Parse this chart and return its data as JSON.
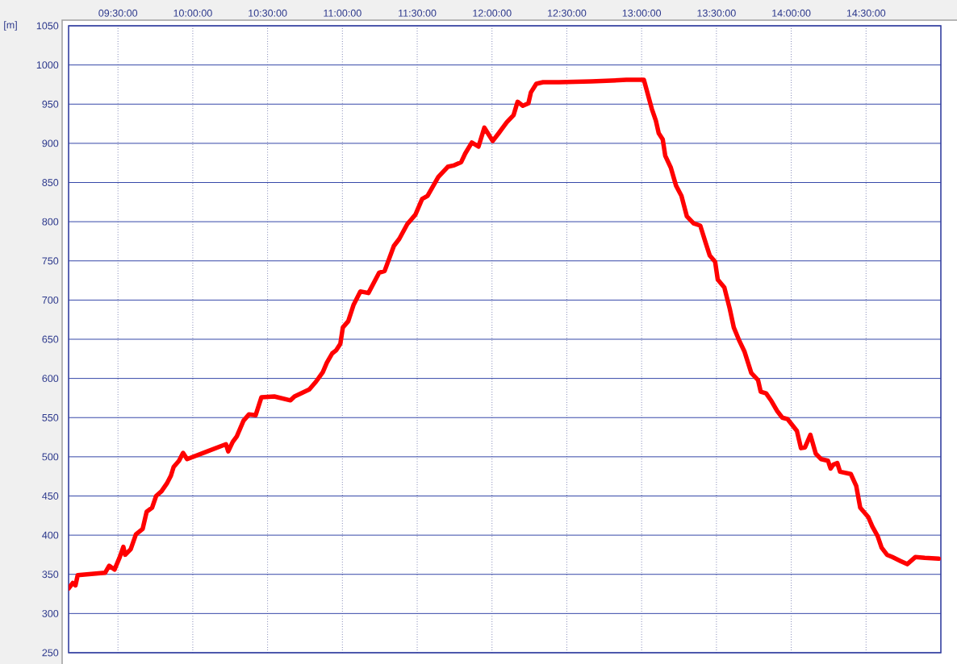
{
  "chart_data": {
    "type": "line",
    "ylabel": "[m]",
    "color": "#ff0000",
    "grid": true,
    "xlim": [
      9.17,
      15
    ],
    "ylim": [
      250,
      1050
    ],
    "xticks": [
      {
        "value": 9.5,
        "label": "09:30:00"
      },
      {
        "value": 10,
        "label": "10:00:00"
      },
      {
        "value": 10.5,
        "label": "10:30:00"
      },
      {
        "value": 11,
        "label": "11:00:00"
      },
      {
        "value": 11.5,
        "label": "11:30:00"
      },
      {
        "value": 12,
        "label": "12:00:00"
      },
      {
        "value": 12.5,
        "label": "12:30:00"
      },
      {
        "value": 13,
        "label": "13:00:00"
      },
      {
        "value": 13.5,
        "label": "13:30:00"
      },
      {
        "value": 14,
        "label": "14:00:00"
      },
      {
        "value": 14.5,
        "label": "14:30:00"
      }
    ],
    "yticks": [
      250,
      300,
      350,
      400,
      450,
      500,
      550,
      600,
      650,
      700,
      750,
      800,
      850,
      900,
      950,
      1000,
      1050
    ],
    "x": [
      9.171,
      9.198,
      9.216,
      9.231,
      9.414,
      9.441,
      9.477,
      9.512,
      9.536,
      9.548,
      9.585,
      9.62,
      9.665,
      9.692,
      9.728,
      9.755,
      9.791,
      9.827,
      9.854,
      9.872,
      9.908,
      9.935,
      9.962,
      10.222,
      10.237,
      10.267,
      10.294,
      10.339,
      10.375,
      10.42,
      10.459,
      10.545,
      10.653,
      10.68,
      10.779,
      10.824,
      10.869,
      10.896,
      10.932,
      10.959,
      10.986,
      11.003,
      11.039,
      11.075,
      11.12,
      11.174,
      11.246,
      11.282,
      11.344,
      11.38,
      11.434,
      11.488,
      11.533,
      11.569,
      11.641,
      11.704,
      11.748,
      11.794,
      11.821,
      11.865,
      11.91,
      11.949,
      12.005,
      12.045,
      12.099,
      12.144,
      12.171,
      12.206,
      12.243,
      12.26,
      12.296,
      12.341,
      12.449,
      12.664,
      12.898,
      13.015,
      13.068,
      13.095,
      13.114,
      13.141,
      13.158,
      13.195,
      13.23,
      13.266,
      13.302,
      13.347,
      13.392,
      13.428,
      13.455,
      13.491,
      13.509,
      13.553,
      13.589,
      13.616,
      13.653,
      13.688,
      13.733,
      13.778,
      13.796,
      13.832,
      13.868,
      13.904,
      13.94,
      13.976,
      14.038,
      14.065,
      14.092,
      14.128,
      14.164,
      14.2,
      14.245,
      14.263,
      14.281,
      14.308,
      14.326,
      14.398,
      14.434,
      14.461,
      14.515,
      14.542,
      14.577,
      14.604,
      14.64,
      14.676,
      14.73,
      14.775,
      14.829,
      14.892,
      14.985
    ],
    "values": [
      332,
      339,
      336,
      349,
      352,
      361,
      356,
      372,
      385,
      375,
      382,
      401,
      408,
      430,
      435,
      450,
      456,
      466,
      476,
      487,
      495,
      505,
      497,
      516,
      507,
      519,
      526,
      546,
      554,
      553,
      576,
      577,
      572,
      577,
      586,
      596,
      608,
      620,
      632,
      636,
      644,
      665,
      673,
      694,
      711,
      709,
      735,
      737,
      769,
      778,
      797,
      809,
      829,
      833,
      857,
      870,
      872,
      876,
      887,
      901,
      896,
      920,
      903,
      913,
      927,
      936,
      953,
      948,
      951,
      965,
      976,
      978,
      978,
      979,
      981,
      981,
      944,
      929,
      913,
      905,
      884,
      869,
      846,
      833,
      807,
      798,
      795,
      773,
      757,
      749,
      726,
      716,
      689,
      665,
      648,
      634,
      607,
      598,
      583,
      581,
      571,
      559,
      550,
      548,
      533,
      511,
      512,
      528,
      504,
      497,
      495,
      485,
      490,
      492,
      481,
      478,
      463,
      435,
      423,
      411,
      399,
      384,
      375,
      372,
      367,
      363,
      372,
      371,
      370
    ]
  }
}
